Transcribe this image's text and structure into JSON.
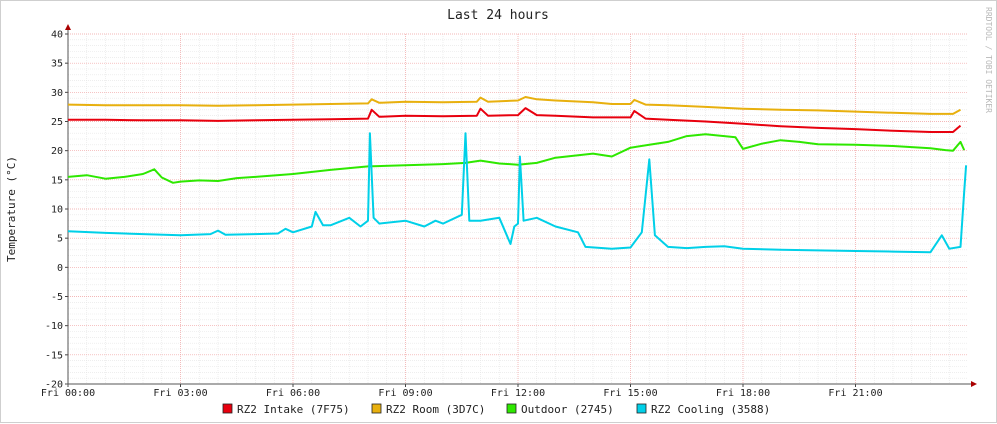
{
  "chart_data": {
    "type": "line",
    "title": "Last 24 hours",
    "ylabel": "Temperature (°C)",
    "watermark": "RRDTOOL / TOBI OETIKER",
    "ylim": [
      -20,
      40
    ],
    "yticks": [
      40,
      35,
      30,
      25,
      20,
      15,
      10,
      5,
      0,
      -5,
      -10,
      -15,
      -20
    ],
    "xlim": [
      0,
      24
    ],
    "xticks": [
      {
        "hour": 0,
        "label": "Fri 00:00"
      },
      {
        "hour": 3,
        "label": "Fri 03:00"
      },
      {
        "hour": 6,
        "label": "Fri 06:00"
      },
      {
        "hour": 9,
        "label": "Fri 09:00"
      },
      {
        "hour": 12,
        "label": "Fri 12:00"
      },
      {
        "hour": 15,
        "label": "Fri 15:00"
      },
      {
        "hour": 18,
        "label": "Fri 18:00"
      },
      {
        "hour": 21,
        "label": "Fri 21:00"
      }
    ],
    "grid": true,
    "legend_position": "bottom",
    "series": [
      {
        "name": "RZ2 Intake (7F75)",
        "color": "#e8000e",
        "points": [
          [
            0,
            25.3
          ],
          [
            1,
            25.3
          ],
          [
            2,
            25.2
          ],
          [
            3,
            25.2
          ],
          [
            4,
            25.1
          ],
          [
            5,
            25.2
          ],
          [
            6,
            25.3
          ],
          [
            7,
            25.4
          ],
          [
            8,
            25.5
          ],
          [
            8.1,
            27.0
          ],
          [
            8.3,
            25.8
          ],
          [
            9,
            26.0
          ],
          [
            10,
            25.9
          ],
          [
            10.9,
            26.0
          ],
          [
            11.0,
            27.2
          ],
          [
            11.2,
            26.0
          ],
          [
            12,
            26.1
          ],
          [
            12.2,
            27.3
          ],
          [
            12.5,
            26.1
          ],
          [
            13,
            26.0
          ],
          [
            14,
            25.7
          ],
          [
            15,
            25.7
          ],
          [
            15.1,
            26.8
          ],
          [
            15.4,
            25.5
          ],
          [
            16,
            25.3
          ],
          [
            17,
            25.0
          ],
          [
            18,
            24.6
          ],
          [
            19,
            24.2
          ],
          [
            20,
            23.9
          ],
          [
            21,
            23.7
          ],
          [
            22,
            23.4
          ],
          [
            23,
            23.2
          ],
          [
            23.6,
            23.2
          ],
          [
            23.8,
            24.3
          ]
        ]
      },
      {
        "name": "RZ2 Room (3D7C)",
        "color": "#e8b00e",
        "points": [
          [
            0,
            27.9
          ],
          [
            1,
            27.8
          ],
          [
            2,
            27.8
          ],
          [
            3,
            27.8
          ],
          [
            4,
            27.7
          ],
          [
            5,
            27.8
          ],
          [
            6,
            27.9
          ],
          [
            7,
            28.0
          ],
          [
            8,
            28.1
          ],
          [
            8.1,
            28.8
          ],
          [
            8.3,
            28.2
          ],
          [
            9,
            28.4
          ],
          [
            10,
            28.3
          ],
          [
            10.9,
            28.4
          ],
          [
            11.0,
            29.1
          ],
          [
            11.2,
            28.4
          ],
          [
            12,
            28.6
          ],
          [
            12.2,
            29.2
          ],
          [
            12.5,
            28.8
          ],
          [
            13,
            28.6
          ],
          [
            14,
            28.3
          ],
          [
            14.5,
            28.0
          ],
          [
            15,
            28.0
          ],
          [
            15.1,
            28.7
          ],
          [
            15.4,
            27.9
          ],
          [
            16,
            27.8
          ],
          [
            17,
            27.5
          ],
          [
            18,
            27.2
          ],
          [
            19,
            27.0
          ],
          [
            20,
            26.9
          ],
          [
            21,
            26.7
          ],
          [
            22,
            26.5
          ],
          [
            23,
            26.3
          ],
          [
            23.6,
            26.3
          ],
          [
            23.8,
            27.0
          ]
        ]
      },
      {
        "name": "Outdoor (2745)",
        "color": "#2ee800",
        "points": [
          [
            0,
            15.5
          ],
          [
            0.5,
            15.8
          ],
          [
            1,
            15.2
          ],
          [
            1.5,
            15.5
          ],
          [
            2,
            16.0
          ],
          [
            2.3,
            16.8
          ],
          [
            2.5,
            15.4
          ],
          [
            2.8,
            14.5
          ],
          [
            3,
            14.7
          ],
          [
            3.5,
            14.9
          ],
          [
            4,
            14.8
          ],
          [
            4.5,
            15.3
          ],
          [
            5,
            15.5
          ],
          [
            6,
            16.0
          ],
          [
            7,
            16.7
          ],
          [
            8,
            17.3
          ],
          [
            9,
            17.5
          ],
          [
            10,
            17.7
          ],
          [
            10.6,
            17.9
          ],
          [
            11,
            18.3
          ],
          [
            11.5,
            17.8
          ],
          [
            12,
            17.6
          ],
          [
            12.5,
            17.9
          ],
          [
            13,
            18.8
          ],
          [
            14,
            19.5
          ],
          [
            14.5,
            19.0
          ],
          [
            15,
            20.5
          ],
          [
            15.5,
            21.0
          ],
          [
            16,
            21.5
          ],
          [
            16.5,
            22.5
          ],
          [
            17,
            22.8
          ],
          [
            17.5,
            22.5
          ],
          [
            17.8,
            22.3
          ],
          [
            18,
            20.3
          ],
          [
            18.5,
            21.2
          ],
          [
            19,
            21.8
          ],
          [
            19.5,
            21.5
          ],
          [
            20,
            21.1
          ],
          [
            21,
            21.0
          ],
          [
            22,
            20.8
          ],
          [
            23,
            20.4
          ],
          [
            23.4,
            20.1
          ],
          [
            23.6,
            20.0
          ],
          [
            23.8,
            21.5
          ],
          [
            23.9,
            20.1
          ]
        ]
      },
      {
        "name": "RZ2 Cooling (3588)",
        "color": "#00d0e8",
        "points": [
          [
            0,
            6.2
          ],
          [
            1,
            5.9
          ],
          [
            2,
            5.7
          ],
          [
            3,
            5.5
          ],
          [
            3.8,
            5.7
          ],
          [
            4,
            6.3
          ],
          [
            4.2,
            5.6
          ],
          [
            5,
            5.7
          ],
          [
            5.6,
            5.8
          ],
          [
            5.8,
            6.6
          ],
          [
            6,
            6.0
          ],
          [
            6.5,
            7.0
          ],
          [
            6.6,
            9.5
          ],
          [
            6.8,
            7.2
          ],
          [
            7,
            7.2
          ],
          [
            7.5,
            8.5
          ],
          [
            7.8,
            7.0
          ],
          [
            8,
            8.0
          ],
          [
            8.05,
            23.0
          ],
          [
            8.15,
            8.5
          ],
          [
            8.3,
            7.5
          ],
          [
            9,
            8.0
          ],
          [
            9.5,
            7.0
          ],
          [
            9.8,
            8.0
          ],
          [
            10,
            7.5
          ],
          [
            10.5,
            9.0
          ],
          [
            10.6,
            23.0
          ],
          [
            10.7,
            8.0
          ],
          [
            11,
            8.0
          ],
          [
            11.5,
            8.5
          ],
          [
            11.7,
            5.5
          ],
          [
            11.8,
            4.0
          ],
          [
            11.9,
            7.0
          ],
          [
            12,
            7.5
          ],
          [
            12.05,
            19.0
          ],
          [
            12.15,
            8.0
          ],
          [
            12.5,
            8.5
          ],
          [
            13,
            7.0
          ],
          [
            13.6,
            6.0
          ],
          [
            13.8,
            3.5
          ],
          [
            14.5,
            3.2
          ],
          [
            15,
            3.4
          ],
          [
            15.3,
            6.0
          ],
          [
            15.5,
            18.5
          ],
          [
            15.65,
            5.5
          ],
          [
            16,
            3.5
          ],
          [
            16.5,
            3.3
          ],
          [
            17,
            3.5
          ],
          [
            17.5,
            3.6
          ],
          [
            18,
            3.2
          ],
          [
            19,
            3.0
          ],
          [
            20,
            2.9
          ],
          [
            21,
            2.8
          ],
          [
            22,
            2.7
          ],
          [
            23,
            2.6
          ],
          [
            23.3,
            5.5
          ],
          [
            23.5,
            3.2
          ],
          [
            23.8,
            3.5
          ],
          [
            23.9,
            13.0
          ],
          [
            23.95,
            17.5
          ]
        ]
      }
    ]
  }
}
